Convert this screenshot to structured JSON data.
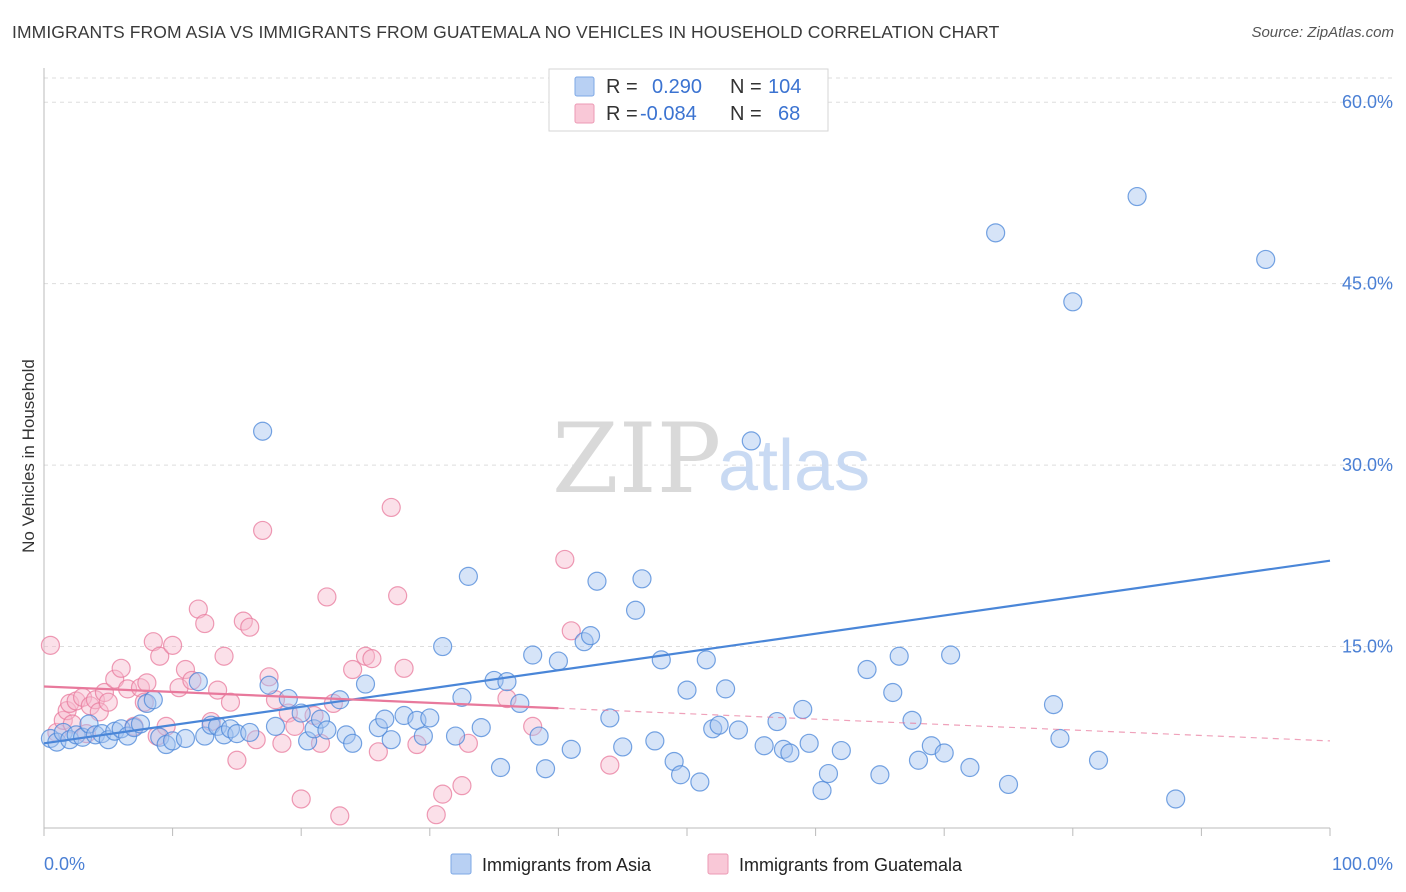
{
  "title": "IMMIGRANTS FROM ASIA VS IMMIGRANTS FROM GUATEMALA NO VEHICLES IN HOUSEHOLD CORRELATION CHART",
  "source": "Source: ZipAtlas.com",
  "watermark": {
    "zip": "ZIP",
    "atlas": "atlas"
  },
  "colors": {
    "asia": "#4a86d8",
    "guatemala": "#e8799c",
    "axis_text": "#4a7fd4"
  },
  "legend_stats": [
    {
      "r_label": "R =",
      "r_value": "0.290",
      "n_label": "N =",
      "n_value": "104"
    },
    {
      "r_label": "R =",
      "r_value": "-0.084",
      "n_label": "N =",
      "n_value": "68"
    }
  ],
  "chart_data": {
    "type": "scatter",
    "title": "IMMIGRANTS FROM ASIA VS IMMIGRANTS FROM GUATEMALA NO VEHICLES IN HOUSEHOLD CORRELATION CHART",
    "xlabel": "",
    "ylabel": "No Vehicles in Household",
    "xlim": [
      0,
      100
    ],
    "ylim": [
      0,
      62
    ],
    "x_tick_labels": [
      "0.0%",
      "100.0%"
    ],
    "y_ticks": [
      15,
      30,
      45,
      60
    ],
    "y_tick_labels": [
      "15.0%",
      "30.0%",
      "45.0%",
      "60.0%"
    ],
    "grid": true,
    "legend_position": "bottom",
    "series": [
      {
        "name": "Immigrants from Asia",
        "color": "#4a86d8",
        "trend": {
          "x": [
            0,
            100
          ],
          "y": [
            7.0,
            22.1
          ],
          "style": "solid"
        },
        "points": [
          [
            0.5,
            7.4
          ],
          [
            1.0,
            7.1
          ],
          [
            1.5,
            7.9
          ],
          [
            2.0,
            7.3
          ],
          [
            2.5,
            7.7
          ],
          [
            3.0,
            7.5
          ],
          [
            3.5,
            8.6
          ],
          [
            4.0,
            7.7
          ],
          [
            4.5,
            7.8
          ],
          [
            5.0,
            7.3
          ],
          [
            5.5,
            8.0
          ],
          [
            6.0,
            8.2
          ],
          [
            6.5,
            7.6
          ],
          [
            7.0,
            8.3
          ],
          [
            7.5,
            8.6
          ],
          [
            8.0,
            10.3
          ],
          [
            8.5,
            10.6
          ],
          [
            9.0,
            7.5
          ],
          [
            9.5,
            6.9
          ],
          [
            10.0,
            7.2
          ],
          [
            11.0,
            7.4
          ],
          [
            12.0,
            12.1
          ],
          [
            12.5,
            7.6
          ],
          [
            13.0,
            8.5
          ],
          [
            13.5,
            8.4
          ],
          [
            14.0,
            7.7
          ],
          [
            14.5,
            8.2
          ],
          [
            15.0,
            7.8
          ],
          [
            16.0,
            7.9
          ],
          [
            17.0,
            32.8
          ],
          [
            17.5,
            11.8
          ],
          [
            18.0,
            8.4
          ],
          [
            19.0,
            10.7
          ],
          [
            20.0,
            9.5
          ],
          [
            20.5,
            7.2
          ],
          [
            21.0,
            8.2
          ],
          [
            21.5,
            9.0
          ],
          [
            22.0,
            8.1
          ],
          [
            23.0,
            10.6
          ],
          [
            23.5,
            7.7
          ],
          [
            24.0,
            7.0
          ],
          [
            25.0,
            11.9
          ],
          [
            26.0,
            8.3
          ],
          [
            26.5,
            9.0
          ],
          [
            27.0,
            7.3
          ],
          [
            28.0,
            9.3
          ],
          [
            29.0,
            8.9
          ],
          [
            29.5,
            7.6
          ],
          [
            30.0,
            9.1
          ],
          [
            31.0,
            15.0
          ],
          [
            32.0,
            7.6
          ],
          [
            32.5,
            10.8
          ],
          [
            33.0,
            20.8
          ],
          [
            34.0,
            8.3
          ],
          [
            35.0,
            12.2
          ],
          [
            35.5,
            5.0
          ],
          [
            36.0,
            12.1
          ],
          [
            37.0,
            10.3
          ],
          [
            38.0,
            14.3
          ],
          [
            38.5,
            7.6
          ],
          [
            39.0,
            4.9
          ],
          [
            40.0,
            13.8
          ],
          [
            41.0,
            6.5
          ],
          [
            42.0,
            15.4
          ],
          [
            42.5,
            15.9
          ],
          [
            43.0,
            20.4
          ],
          [
            44.0,
            9.1
          ],
          [
            45.0,
            6.7
          ],
          [
            46.0,
            18.0
          ],
          [
            46.5,
            20.6
          ],
          [
            47.5,
            7.2
          ],
          [
            48.0,
            13.9
          ],
          [
            49.0,
            5.5
          ],
          [
            49.5,
            4.4
          ],
          [
            50.0,
            11.4
          ],
          [
            51.0,
            3.8
          ],
          [
            51.5,
            13.9
          ],
          [
            52.0,
            8.2
          ],
          [
            52.5,
            8.5
          ],
          [
            53.0,
            11.5
          ],
          [
            54.0,
            8.1
          ],
          [
            55.0,
            32.0
          ],
          [
            56.0,
            6.8
          ],
          [
            57.0,
            8.8
          ],
          [
            57.5,
            6.5
          ],
          [
            58.0,
            6.2
          ],
          [
            59.0,
            9.8
          ],
          [
            59.5,
            7.0
          ],
          [
            61.0,
            4.5
          ],
          [
            62.0,
            6.4
          ],
          [
            64.0,
            13.1
          ],
          [
            65.0,
            4.4
          ],
          [
            66.0,
            11.2
          ],
          [
            66.5,
            14.2
          ],
          [
            67.5,
            8.9
          ],
          [
            68.0,
            5.6
          ],
          [
            69.0,
            6.8
          ],
          [
            70.0,
            6.2
          ],
          [
            70.5,
            14.3
          ],
          [
            72.0,
            5.0
          ],
          [
            74.0,
            49.2
          ],
          [
            75.0,
            3.6
          ],
          [
            78.5,
            10.2
          ],
          [
            79.0,
            7.4
          ],
          [
            80.0,
            43.5
          ],
          [
            82.0,
            5.6
          ],
          [
            85.0,
            52.2
          ],
          [
            88.0,
            2.4
          ],
          [
            95.0,
            47.0
          ],
          [
            60.5,
            3.1
          ]
        ]
      },
      {
        "name": "Immigrants from Guatemala",
        "color": "#e8799c",
        "trend": {
          "x": [
            0,
            40,
            100
          ],
          "y": [
            11.7,
            9.9,
            7.2
          ],
          "style": "solid-then-dashed",
          "solid_until": 40
        },
        "points": [
          [
            0.5,
            15.1
          ],
          [
            1.0,
            7.9
          ],
          [
            1.5,
            8.9
          ],
          [
            1.8,
            9.7
          ],
          [
            2.0,
            10.3
          ],
          [
            2.2,
            8.6
          ],
          [
            2.5,
            10.5
          ],
          [
            3.0,
            10.8
          ],
          [
            3.3,
            7.8
          ],
          [
            3.6,
            10.1
          ],
          [
            4.0,
            10.6
          ],
          [
            4.3,
            9.6
          ],
          [
            4.7,
            11.2
          ],
          [
            5.0,
            10.4
          ],
          [
            5.5,
            12.3
          ],
          [
            6.0,
            13.2
          ],
          [
            6.5,
            11.5
          ],
          [
            7.0,
            8.4
          ],
          [
            7.5,
            11.6
          ],
          [
            7.8,
            10.4
          ],
          [
            8.0,
            12.0
          ],
          [
            8.5,
            15.4
          ],
          [
            8.8,
            7.6
          ],
          [
            9.0,
            14.2
          ],
          [
            9.5,
            8.4
          ],
          [
            10.0,
            15.1
          ],
          [
            10.5,
            11.6
          ],
          [
            11.0,
            13.1
          ],
          [
            11.5,
            12.2
          ],
          [
            12.0,
            18.1
          ],
          [
            12.5,
            16.9
          ],
          [
            13.0,
            8.8
          ],
          [
            13.5,
            11.4
          ],
          [
            14.0,
            14.2
          ],
          [
            14.5,
            10.4
          ],
          [
            15.0,
            5.6
          ],
          [
            15.5,
            17.1
          ],
          [
            16.0,
            16.6
          ],
          [
            16.5,
            7.3
          ],
          [
            17.0,
            24.6
          ],
          [
            17.5,
            12.5
          ],
          [
            18.0,
            10.6
          ],
          [
            18.5,
            7.0
          ],
          [
            19.0,
            9.5
          ],
          [
            19.5,
            8.4
          ],
          [
            20.0,
            2.4
          ],
          [
            21.0,
            9.3
          ],
          [
            21.5,
            7.0
          ],
          [
            22.0,
            19.1
          ],
          [
            22.5,
            10.3
          ],
          [
            23.0,
            1.0
          ],
          [
            24.0,
            13.1
          ],
          [
            25.0,
            14.2
          ],
          [
            25.5,
            14.0
          ],
          [
            26.0,
            6.3
          ],
          [
            27.0,
            26.5
          ],
          [
            27.5,
            19.2
          ],
          [
            28.0,
            13.2
          ],
          [
            29.0,
            6.9
          ],
          [
            30.5,
            1.1
          ],
          [
            31.0,
            2.8
          ],
          [
            32.5,
            3.5
          ],
          [
            33.0,
            7.0
          ],
          [
            36.0,
            10.7
          ],
          [
            38.0,
            8.4
          ],
          [
            40.5,
            22.2
          ],
          [
            41.0,
            16.3
          ],
          [
            44.0,
            5.2
          ]
        ]
      }
    ]
  },
  "bottom_legend": [
    {
      "label": "Immigrants from Asia"
    },
    {
      "label": "Immigrants from Guatemala"
    }
  ]
}
